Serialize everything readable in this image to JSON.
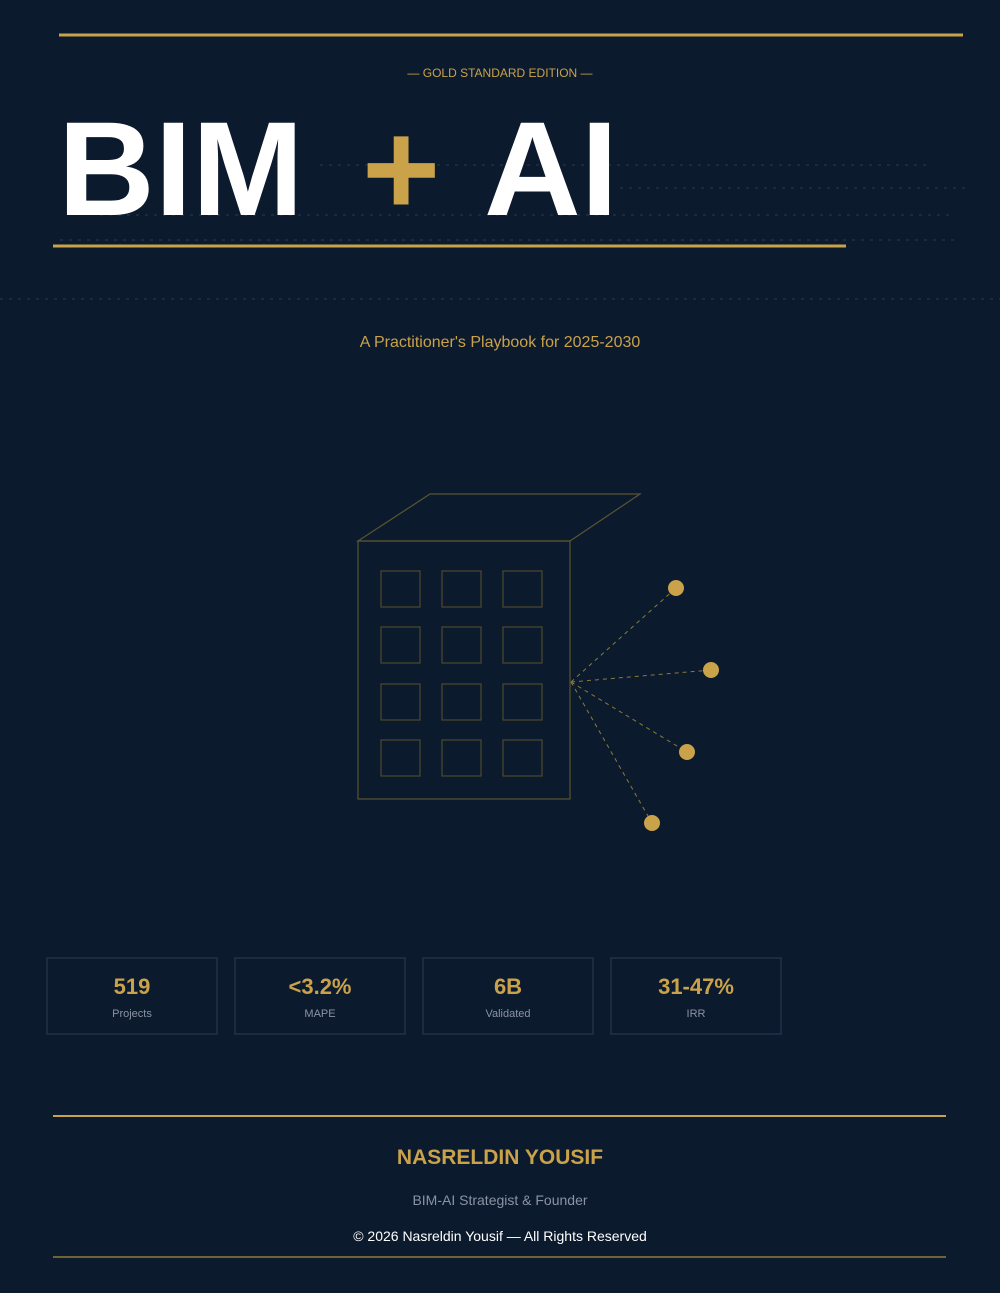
{
  "cover": {
    "edition": "— GOLD STANDARD EDITION —",
    "title": {
      "left": "BIM",
      "joiner": "+",
      "right": "AI"
    },
    "subtitle": "A Practitioner's Playbook for 2025-2030",
    "stats": [
      {
        "value": "519",
        "label": "Projects"
      },
      {
        "value": "<3.2%",
        "label": "MAPE"
      },
      {
        "value": "6B",
        "label": "Validated"
      },
      {
        "value": "31-47%",
        "label": "IRR"
      }
    ],
    "author": "NASRELDIN YOUSIF",
    "role": "BIM-AI Strategist & Founder",
    "copyright": "© 2026 Nasreldin Yousif — All Rights Reserved"
  }
}
